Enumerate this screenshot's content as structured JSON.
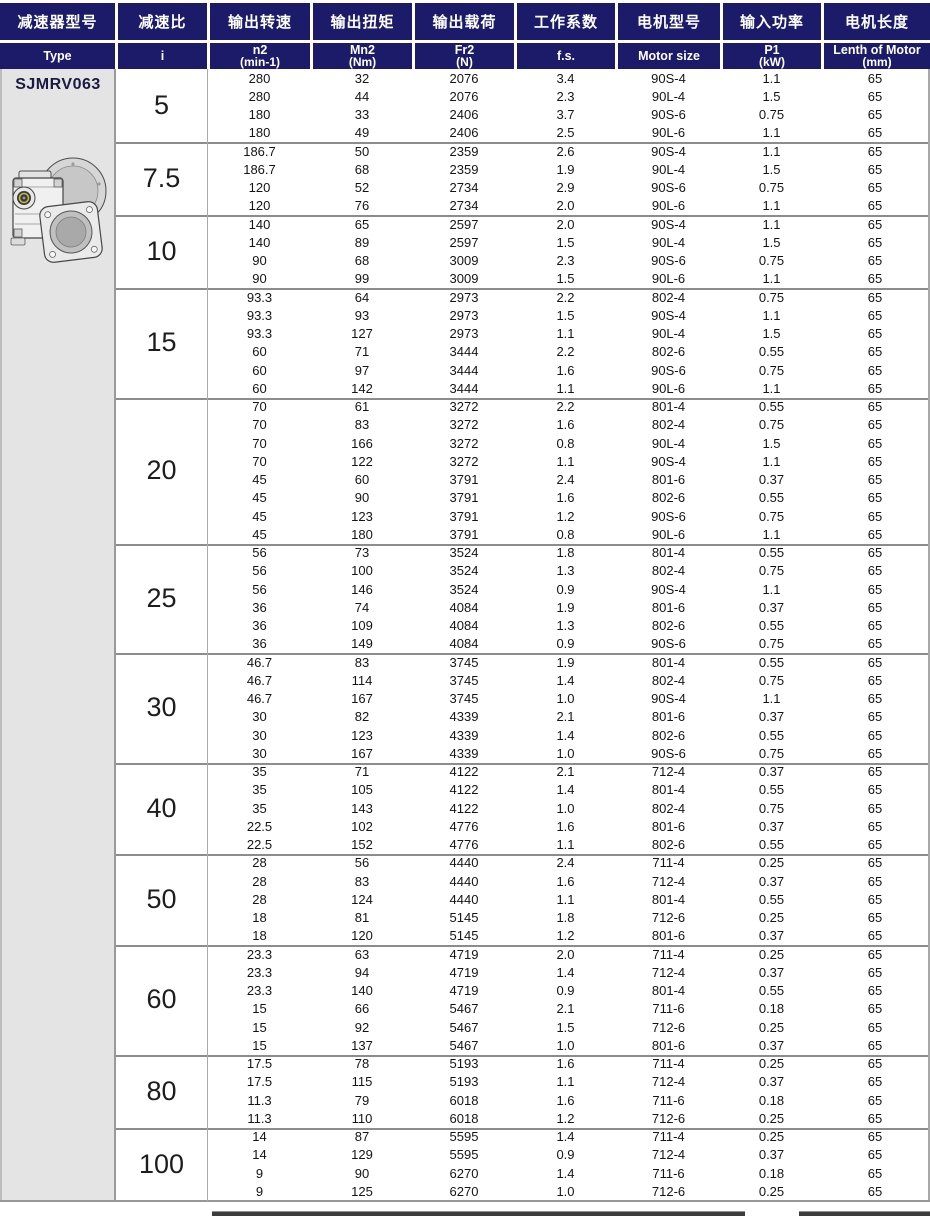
{
  "product": {
    "model": "SJMRV063"
  },
  "icons": {
    "gearbox_image": "worm-gearbox-3d-render"
  },
  "table": {
    "columns": [
      {
        "zh": "减速器型号",
        "en": "Type"
      },
      {
        "zh": "减速比",
        "en": "i"
      },
      {
        "zh": "输出转速",
        "en": "n2",
        "en2": "(min-1)"
      },
      {
        "zh": "输出扭矩",
        "en": "Mn2",
        "en2": "(Nm)"
      },
      {
        "zh": "输出载荷",
        "en": "Fr2",
        "en2": "(N)"
      },
      {
        "zh": "工作系数",
        "en": "f.s."
      },
      {
        "zh": "电机型号",
        "en": "Motor size"
      },
      {
        "zh": "输入功率",
        "en": "P1",
        "en2": "(kW)"
      },
      {
        "zh": "电机长度",
        "en": "Lenth of Motor",
        "en2": "(mm)"
      }
    ],
    "groups": [
      {
        "i": "5",
        "rows": [
          [
            "280",
            "32",
            "2076",
            "3.4",
            "90S-4",
            "1.1",
            "65"
          ],
          [
            "280",
            "44",
            "2076",
            "2.3",
            "90L-4",
            "1.5",
            "65"
          ],
          [
            "180",
            "33",
            "2406",
            "3.7",
            "90S-6",
            "0.75",
            "65"
          ],
          [
            "180",
            "49",
            "2406",
            "2.5",
            "90L-6",
            "1.1",
            "65"
          ]
        ]
      },
      {
        "i": "7.5",
        "rows": [
          [
            "186.7",
            "50",
            "2359",
            "2.6",
            "90S-4",
            "1.1",
            "65"
          ],
          [
            "186.7",
            "68",
            "2359",
            "1.9",
            "90L-4",
            "1.5",
            "65"
          ],
          [
            "120",
            "52",
            "2734",
            "2.9",
            "90S-6",
            "0.75",
            "65"
          ],
          [
            "120",
            "76",
            "2734",
            "2.0",
            "90L-6",
            "1.1",
            "65"
          ]
        ]
      },
      {
        "i": "10",
        "rows": [
          [
            "140",
            "65",
            "2597",
            "2.0",
            "90S-4",
            "1.1",
            "65"
          ],
          [
            "140",
            "89",
            "2597",
            "1.5",
            "90L-4",
            "1.5",
            "65"
          ],
          [
            "90",
            "68",
            "3009",
            "2.3",
            "90S-6",
            "0.75",
            "65"
          ],
          [
            "90",
            "99",
            "3009",
            "1.5",
            "90L-6",
            "1.1",
            "65"
          ]
        ]
      },
      {
        "i": "15",
        "rows": [
          [
            "93.3",
            "64",
            "2973",
            "2.2",
            "802-4",
            "0.75",
            "65"
          ],
          [
            "93.3",
            "93",
            "2973",
            "1.5",
            "90S-4",
            "1.1",
            "65"
          ],
          [
            "93.3",
            "127",
            "2973",
            "1.1",
            "90L-4",
            "1.5",
            "65"
          ],
          [
            "60",
            "71",
            "3444",
            "2.2",
            "802-6",
            "0.55",
            "65"
          ],
          [
            "60",
            "97",
            "3444",
            "1.6",
            "90S-6",
            "0.75",
            "65"
          ],
          [
            "60",
            "142",
            "3444",
            "1.1",
            "90L-6",
            "1.1",
            "65"
          ]
        ]
      },
      {
        "i": "20",
        "rows": [
          [
            "70",
            "61",
            "3272",
            "2.2",
            "801-4",
            "0.55",
            "65"
          ],
          [
            "70",
            "83",
            "3272",
            "1.6",
            "802-4",
            "0.75",
            "65"
          ],
          [
            "70",
            "166",
            "3272",
            "0.8",
            "90L-4",
            "1.5",
            "65"
          ],
          [
            "70",
            "122",
            "3272",
            "1.1",
            "90S-4",
            "1.1",
            "65"
          ],
          [
            "45",
            "60",
            "3791",
            "2.4",
            "801-6",
            "0.37",
            "65"
          ],
          [
            "45",
            "90",
            "3791",
            "1.6",
            "802-6",
            "0.55",
            "65"
          ],
          [
            "45",
            "123",
            "3791",
            "1.2",
            "90S-6",
            "0.75",
            "65"
          ],
          [
            "45",
            "180",
            "3791",
            "0.8",
            "90L-6",
            "1.1",
            "65"
          ]
        ]
      },
      {
        "i": "25",
        "rows": [
          [
            "56",
            "73",
            "3524",
            "1.8",
            "801-4",
            "0.55",
            "65"
          ],
          [
            "56",
            "100",
            "3524",
            "1.3",
            "802-4",
            "0.75",
            "65"
          ],
          [
            "56",
            "146",
            "3524",
            "0.9",
            "90S-4",
            "1.1",
            "65"
          ],
          [
            "36",
            "74",
            "4084",
            "1.9",
            "801-6",
            "0.37",
            "65"
          ],
          [
            "36",
            "109",
            "4084",
            "1.3",
            "802-6",
            "0.55",
            "65"
          ],
          [
            "36",
            "149",
            "4084",
            "0.9",
            "90S-6",
            "0.75",
            "65"
          ]
        ]
      },
      {
        "i": "30",
        "rows": [
          [
            "46.7",
            "83",
            "3745",
            "1.9",
            "801-4",
            "0.55",
            "65"
          ],
          [
            "46.7",
            "114",
            "3745",
            "1.4",
            "802-4",
            "0.75",
            "65"
          ],
          [
            "46.7",
            "167",
            "3745",
            "1.0",
            "90S-4",
            "1.1",
            "65"
          ],
          [
            "30",
            "82",
            "4339",
            "2.1",
            "801-6",
            "0.37",
            "65"
          ],
          [
            "30",
            "123",
            "4339",
            "1.4",
            "802-6",
            "0.55",
            "65"
          ],
          [
            "30",
            "167",
            "4339",
            "1.0",
            "90S-6",
            "0.75",
            "65"
          ]
        ]
      },
      {
        "i": "40",
        "rows": [
          [
            "35",
            "71",
            "4122",
            "2.1",
            "712-4",
            "0.37",
            "65"
          ],
          [
            "35",
            "105",
            "4122",
            "1.4",
            "801-4",
            "0.55",
            "65"
          ],
          [
            "35",
            "143",
            "4122",
            "1.0",
            "802-4",
            "0.75",
            "65"
          ],
          [
            "22.5",
            "102",
            "4776",
            "1.6",
            "801-6",
            "0.37",
            "65"
          ],
          [
            "22.5",
            "152",
            "4776",
            "1.1",
            "802-6",
            "0.55",
            "65"
          ]
        ]
      },
      {
        "i": "50",
        "rows": [
          [
            "28",
            "56",
            "4440",
            "2.4",
            "711-4",
            "0.25",
            "65"
          ],
          [
            "28",
            "83",
            "4440",
            "1.6",
            "712-4",
            "0.37",
            "65"
          ],
          [
            "28",
            "124",
            "4440",
            "1.1",
            "801-4",
            "0.55",
            "65"
          ],
          [
            "18",
            "81",
            "5145",
            "1.8",
            "712-6",
            "0.25",
            "65"
          ],
          [
            "18",
            "120",
            "5145",
            "1.2",
            "801-6",
            "0.37",
            "65"
          ]
        ]
      },
      {
        "i": "60",
        "rows": [
          [
            "23.3",
            "63",
            "4719",
            "2.0",
            "711-4",
            "0.25",
            "65"
          ],
          [
            "23.3",
            "94",
            "4719",
            "1.4",
            "712-4",
            "0.37",
            "65"
          ],
          [
            "23.3",
            "140",
            "4719",
            "0.9",
            "801-4",
            "0.55",
            "65"
          ],
          [
            "15",
            "66",
            "5467",
            "2.1",
            "711-6",
            "0.18",
            "65"
          ],
          [
            "15",
            "92",
            "5467",
            "1.5",
            "712-6",
            "0.25",
            "65"
          ],
          [
            "15",
            "137",
            "5467",
            "1.0",
            "801-6",
            "0.37",
            "65"
          ]
        ]
      },
      {
        "i": "80",
        "rows": [
          [
            "17.5",
            "78",
            "5193",
            "1.6",
            "711-4",
            "0.25",
            "65"
          ],
          [
            "17.5",
            "115",
            "5193",
            "1.1",
            "712-4",
            "0.37",
            "65"
          ],
          [
            "11.3",
            "79",
            "6018",
            "1.6",
            "711-6",
            "0.18",
            "65"
          ],
          [
            "11.3",
            "110",
            "6018",
            "1.2",
            "712-6",
            "0.25",
            "65"
          ]
        ]
      },
      {
        "i": "100",
        "rows": [
          [
            "14",
            "87",
            "5595",
            "1.4",
            "711-4",
            "0.25",
            "65"
          ],
          [
            "14",
            "129",
            "5595",
            "0.9",
            "712-4",
            "0.37",
            "65"
          ],
          [
            "9",
            "90",
            "6270",
            "1.4",
            "711-6",
            "0.18",
            "65"
          ],
          [
            "9",
            "125",
            "6270",
            "1.0",
            "712-6",
            "0.25",
            "65"
          ]
        ]
      }
    ]
  }
}
